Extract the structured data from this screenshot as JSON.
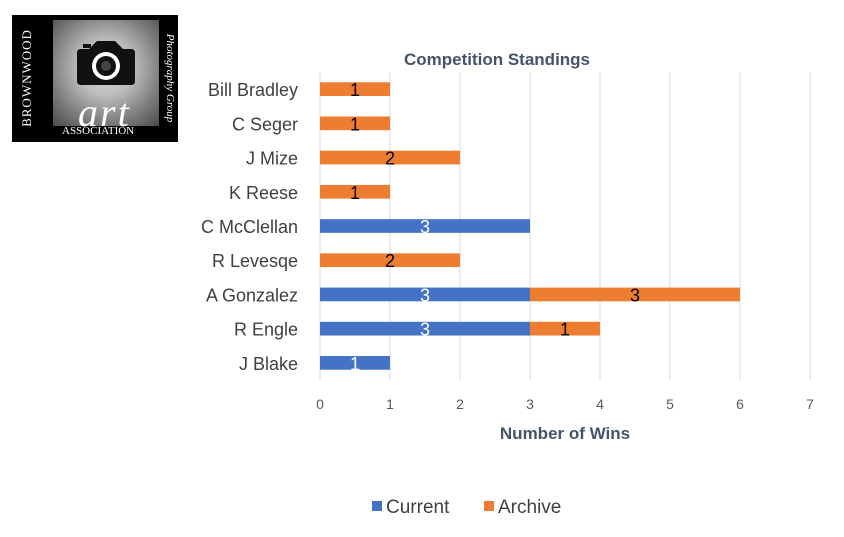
{
  "logo": {
    "side_text": "BROWNWOOD",
    "main_text": "art",
    "sub_text": "ASSOCIATION",
    "group_text": "Photography Group",
    "icon": "camera-icon"
  },
  "chart_data": {
    "type": "bar",
    "orientation": "horizontal",
    "stacked": true,
    "title": "Competition Standings",
    "xlabel": "Number of Wins",
    "ylabel": "",
    "xlim": [
      0,
      7
    ],
    "xticks": [
      "0",
      "1",
      "2",
      "3",
      "4",
      "5",
      "6",
      "7"
    ],
    "grid": true,
    "legend_position": "bottom",
    "categories": [
      "Bill Bradley",
      "C Seger",
      "J Mize",
      "K Reese",
      "C McClellan",
      "R Levesqe",
      "A Gonzalez",
      "R Engle",
      "J Blake"
    ],
    "series": [
      {
        "name": "Current",
        "color": "#4472C4",
        "label_color": "#ffffff",
        "values": [
          0,
          0,
          0,
          0,
          3,
          0,
          3,
          3,
          1
        ]
      },
      {
        "name": "Archive",
        "color": "#ED7D31",
        "label_color": "#000000",
        "values": [
          1,
          1,
          2,
          1,
          0,
          2,
          3,
          1,
          0
        ]
      }
    ]
  }
}
